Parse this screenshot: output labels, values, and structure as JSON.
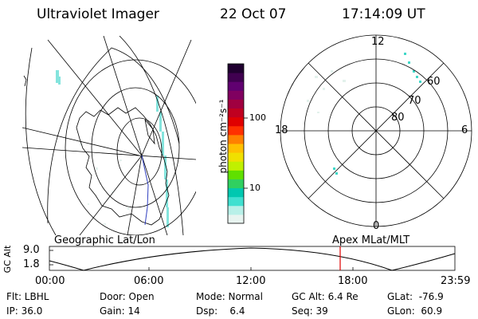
{
  "header": {
    "instrument": "Ultraviolet Imager",
    "date": "22 Oct 07",
    "time": "17:14:09 UT"
  },
  "colorbar": {
    "unit_label": "photon cm⁻²s⁻¹",
    "ticks": [
      "100",
      "10"
    ],
    "colors": [
      "#e8f4f0",
      "#b8f0e8",
      "#40e0d0",
      "#00c8b0",
      "#30d060",
      "#60e000",
      "#c0f000",
      "#f0e000",
      "#ffc000",
      "#ff8000",
      "#ff3000",
      "#e00000",
      "#c00020",
      "#a00040",
      "#800060",
      "#600070",
      "#400050",
      "#200030"
    ]
  },
  "left_map": {
    "projection_label": "Geographic Lat/Lon"
  },
  "polar_plot": {
    "projection_label": "Apex MLat/MLT",
    "mlt_labels": {
      "top": "12",
      "bottom": "0",
      "left": "18",
      "right": "6"
    },
    "lat_labels": [
      "60",
      "70",
      "80"
    ]
  },
  "altitude_plot": {
    "ylabel": "GC Alt",
    "yticks": [
      "9.0",
      "1.8"
    ],
    "xticks": [
      "00:00",
      "06:00",
      "12:00",
      "18:00",
      "23:59"
    ],
    "marker_color": "#e00000"
  },
  "footer": {
    "filter": "Flt: LBHL",
    "ip": "IP: 36.0",
    "door": "Door: Open",
    "gain": "Gain: 14",
    "mode": "Mode: Normal",
    "dsp": "Dsp:    6.4",
    "gc_alt": "GC Alt: 6.4 Re",
    "seq": "Seq: 39",
    "glat": "GLat:  -76.9",
    "glon": "GLon:  60.9"
  }
}
